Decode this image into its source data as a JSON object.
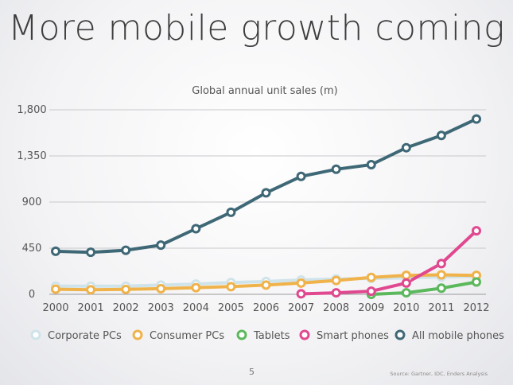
{
  "slide": {
    "title": "More mobile growth coming",
    "page_number": "5",
    "source": "Source: Gartner, IDC, Enders Analysis"
  },
  "chart_data": {
    "type": "line",
    "title": "Global annual unit sales (m)",
    "xlabel": "",
    "ylabel": "",
    "x": [
      "2000",
      "2001",
      "2002",
      "2003",
      "2004",
      "2005",
      "2006",
      "2007",
      "2008",
      "2009",
      "2010",
      "2011",
      "2012"
    ],
    "y_ticks": [
      0,
      450,
      900,
      1350,
      1800
    ],
    "y_tick_labels": [
      "0",
      "450",
      "900",
      "1,350",
      "1,800"
    ],
    "ylim": [
      0,
      1800
    ],
    "grid": true,
    "legend_position": "bottom",
    "series": [
      {
        "name": "Corporate PCs",
        "color": "#cfe3ea",
        "values": [
          80,
          80,
          80,
          90,
          100,
          115,
          125,
          140,
          150,
          155,
          160,
          170,
          175
        ]
      },
      {
        "name": "Consumer PCs",
        "color": "#f0b24a",
        "values": [
          50,
          45,
          48,
          55,
          65,
          75,
          90,
          110,
          135,
          165,
          185,
          190,
          185
        ]
      },
      {
        "name": "Tablets",
        "color": "#5cb85c",
        "values": [
          null,
          null,
          null,
          null,
          null,
          null,
          null,
          null,
          null,
          0,
          15,
          60,
          120
        ]
      },
      {
        "name": "Smart phones",
        "color": "#e0488f",
        "values": [
          null,
          null,
          null,
          null,
          null,
          null,
          null,
          5,
          15,
          30,
          110,
          300,
          620
        ]
      },
      {
        "name": "All mobile phones",
        "color": "#3f6876",
        "values": [
          420,
          410,
          430,
          480,
          640,
          800,
          990,
          1150,
          1220,
          1265,
          1430,
          1550,
          1710
        ]
      }
    ]
  }
}
